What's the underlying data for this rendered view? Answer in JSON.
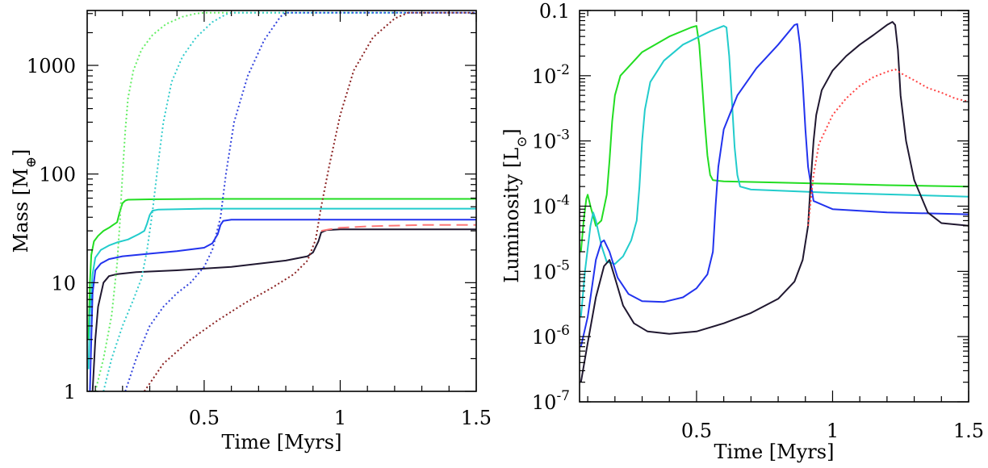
{
  "chart_data": [
    {
      "type": "line",
      "panel": "left",
      "xlabel": "Time [Myrs]",
      "ylabel_main": "Mass [M",
      "ylabel_symbol": "⊕",
      "ylabel_close": "]",
      "xlim": [
        0.07,
        1.5
      ],
      "ylim": [
        1,
        3200
      ],
      "yscale": "log",
      "xticks": [
        0.5,
        1,
        1.5
      ],
      "xtick_labels": [
        "0.5",
        "1",
        "1.5"
      ],
      "yticks": [
        1,
        10,
        100,
        1000
      ],
      "ytick_labels": [
        "1",
        "10",
        "100",
        "1000"
      ],
      "series": [
        {
          "color": "#22dd22",
          "style": "solid",
          "x": [
            0.075,
            0.08,
            0.085,
            0.095,
            0.11,
            0.13,
            0.15,
            0.165,
            0.18,
            0.19,
            0.2,
            0.21,
            0.22,
            0.3,
            0.5,
            1.0,
            1.5
          ],
          "y": [
            3,
            10,
            18,
            24,
            27,
            30,
            32,
            34,
            36,
            45,
            54,
            57,
            58,
            58.5,
            59,
            59,
            59
          ]
        },
        {
          "color": "#22cccc",
          "style": "solid",
          "x": [
            0.075,
            0.08,
            0.09,
            0.1,
            0.12,
            0.15,
            0.18,
            0.22,
            0.26,
            0.28,
            0.29,
            0.3,
            0.31,
            0.33,
            0.5,
            1.0,
            1.5
          ],
          "y": [
            1.6,
            5,
            12,
            17,
            20,
            22,
            23.5,
            25,
            28,
            30,
            35,
            42,
            46,
            47,
            48,
            48,
            48
          ]
        },
        {
          "color": "#2233ee",
          "style": "solid",
          "x": [
            0.08,
            0.085,
            0.09,
            0.1,
            0.12,
            0.15,
            0.2,
            0.3,
            0.4,
            0.5,
            0.53,
            0.55,
            0.56,
            0.57,
            0.6,
            1.0,
            1.5
          ],
          "y": [
            1,
            3,
            8,
            13,
            15,
            16.5,
            17.5,
            18.5,
            19.5,
            21,
            23,
            28,
            34,
            37,
            38,
            38,
            38
          ]
        },
        {
          "color": "#201830",
          "style": "solid",
          "x": [
            0.09,
            0.1,
            0.11,
            0.13,
            0.15,
            0.18,
            0.25,
            0.4,
            0.6,
            0.8,
            0.88,
            0.9,
            0.92,
            0.93,
            0.95,
            1.0,
            1.5
          ],
          "y": [
            1,
            3,
            6,
            10,
            11.5,
            12,
            12.5,
            13,
            14,
            16,
            17.5,
            19,
            24,
            29,
            30.5,
            31,
            31
          ]
        },
        {
          "color": "#ff7777",
          "style": "dashed",
          "x": [
            0.93,
            0.96,
            1.0,
            1.05,
            1.1,
            1.2,
            1.3,
            1.4,
            1.5
          ],
          "y": [
            30,
            31,
            32,
            32.5,
            33,
            33.5,
            34,
            34,
            34
          ]
        },
        {
          "color": "#66ee66",
          "style": "dotted",
          "x": [
            0.1,
            0.13,
            0.16,
            0.18,
            0.19,
            0.2,
            0.21,
            0.22,
            0.24,
            0.27,
            0.31,
            0.36,
            0.42,
            0.47,
            0.5,
            1.0,
            1.5
          ],
          "y": [
            1,
            2,
            5,
            15,
            35,
            100,
            250,
            500,
            900,
            1400,
            1900,
            2400,
            2800,
            3000,
            3050,
            3050,
            3050
          ]
        },
        {
          "color": "#33cccc",
          "style": "dotted",
          "x": [
            0.13,
            0.16,
            0.2,
            0.24,
            0.27,
            0.29,
            0.31,
            0.33,
            0.35,
            0.38,
            0.42,
            0.47,
            0.53,
            0.58,
            0.6,
            1.0,
            1.5
          ],
          "y": [
            1,
            2,
            4,
            7,
            11,
            20,
            45,
            120,
            300,
            700,
            1200,
            1800,
            2500,
            2950,
            3050,
            3050,
            3050
          ]
        },
        {
          "color": "#3344dd",
          "style": "dotted",
          "x": [
            0.21,
            0.25,
            0.3,
            0.35,
            0.4,
            0.45,
            0.5,
            0.53,
            0.56,
            0.58,
            0.61,
            0.66,
            0.72,
            0.78,
            0.8,
            1.0,
            1.5
          ],
          "y": [
            1,
            2,
            4,
            6,
            8,
            10,
            14,
            20,
            40,
            100,
            300,
            800,
            1700,
            2800,
            3050,
            3050,
            3050
          ]
        },
        {
          "color": "#8b2222",
          "style": "dotted",
          "x": [
            0.28,
            0.35,
            0.45,
            0.55,
            0.65,
            0.75,
            0.83,
            0.88,
            0.91,
            0.93,
            0.96,
            1.0,
            1.05,
            1.12,
            1.2,
            1.25,
            1.5
          ],
          "y": [
            1,
            1.8,
            3,
            4.5,
            6.5,
            9,
            12,
            16,
            25,
            50,
            120,
            350,
            900,
            1800,
            2700,
            3050,
            3050
          ]
        }
      ]
    },
    {
      "type": "line",
      "panel": "right",
      "xlabel": "Time [Myrs]",
      "ylabel_main": "Luminosity [L",
      "ylabel_symbol": "⊙",
      "ylabel_close": "]",
      "xlim": [
        0.07,
        1.5
      ],
      "ylim": [
        1e-07,
        0.1
      ],
      "yscale": "log",
      "xticks": [
        0.5,
        1,
        1.5
      ],
      "xtick_labels": [
        "0.5",
        "1",
        "1.5"
      ],
      "yticks": [
        1e-07,
        1e-06,
        1e-05,
        0.0001,
        0.001,
        0.01,
        0.1
      ],
      "ytick_labels": [
        {
          "base": "10",
          "exp": "-7"
        },
        {
          "base": "10",
          "exp": "-6"
        },
        {
          "base": "10",
          "exp": "-5"
        },
        {
          "base": "10",
          "exp": "-4"
        },
        {
          "base": "10",
          "exp": "-3"
        },
        {
          "base": "10",
          "exp": "-2"
        },
        {
          "base": "0.1",
          "exp": ""
        }
      ],
      "series": [
        {
          "color": "#22dd22",
          "style": "solid",
          "x": [
            0.075,
            0.085,
            0.095,
            0.1,
            0.11,
            0.13,
            0.15,
            0.17,
            0.18,
            0.19,
            0.2,
            0.22,
            0.3,
            0.4,
            0.48,
            0.5,
            0.51,
            0.52,
            0.53,
            0.54,
            0.55,
            0.56,
            0.6,
            0.8,
            1.0,
            1.2,
            1.5
          ],
          "y": [
            2e-05,
            6e-05,
            0.00013,
            0.00015,
            0.0001,
            5e-05,
            6e-05,
            0.00015,
            0.0005,
            0.002,
            0.005,
            0.01,
            0.023,
            0.04,
            0.055,
            0.058,
            0.03,
            0.008,
            0.002,
            0.0006,
            0.0003,
            0.00025,
            0.00024,
            0.00023,
            0.00022,
            0.00021,
            0.0002
          ]
        },
        {
          "color": "#22cccc",
          "style": "solid",
          "x": [
            0.075,
            0.09,
            0.11,
            0.12,
            0.13,
            0.15,
            0.17,
            0.2,
            0.23,
            0.26,
            0.28,
            0.29,
            0.3,
            0.31,
            0.33,
            0.38,
            0.45,
            0.55,
            0.6,
            0.61,
            0.62,
            0.63,
            0.64,
            0.65,
            0.66,
            0.7,
            1.0,
            1.5
          ],
          "y": [
            2e-06,
            1e-05,
            5e-05,
            8e-05,
            6e-05,
            2.5e-05,
            1.4e-05,
            1.3e-05,
            1.7e-05,
            3e-05,
            6e-05,
            0.0002,
            0.001,
            0.003,
            0.008,
            0.017,
            0.03,
            0.048,
            0.058,
            0.055,
            0.02,
            0.004,
            0.0008,
            0.0003,
            0.0002,
            0.00018,
            0.00016,
            0.00014
          ]
        },
        {
          "color": "#2233ee",
          "style": "solid",
          "x": [
            0.075,
            0.1,
            0.13,
            0.15,
            0.16,
            0.18,
            0.21,
            0.25,
            0.3,
            0.38,
            0.45,
            0.5,
            0.54,
            0.56,
            0.57,
            0.58,
            0.6,
            0.65,
            0.72,
            0.8,
            0.86,
            0.87,
            0.88,
            0.89,
            0.9,
            0.91,
            0.93,
            1.0,
            1.2,
            1.5
          ],
          "y": [
            7e-07,
            2e-06,
            1.5e-05,
            2.8e-05,
            3e-05,
            2e-05,
            8e-06,
            4.5e-06,
            3.5e-06,
            3.4e-06,
            4e-06,
            5.5e-06,
            9e-06,
            2e-05,
            0.0001,
            0.0004,
            0.0015,
            0.005,
            0.013,
            0.03,
            0.06,
            0.062,
            0.03,
            0.008,
            0.0015,
            0.0004,
            0.00012,
            9e-05,
            8e-05,
            7.5e-05
          ]
        },
        {
          "color": "#201830",
          "style": "solid",
          "x": [
            0.075,
            0.1,
            0.13,
            0.16,
            0.18,
            0.2,
            0.23,
            0.27,
            0.32,
            0.4,
            0.5,
            0.6,
            0.7,
            0.8,
            0.86,
            0.89,
            0.91,
            0.92,
            0.93,
            0.94,
            0.96,
            1.0,
            1.05,
            1.1,
            1.15,
            1.2,
            1.22,
            1.23,
            1.24,
            1.25,
            1.27,
            1.3,
            1.35,
            1.4,
            1.5
          ],
          "y": [
            2e-07,
            8e-07,
            4e-06,
            1.2e-05,
            1.5e-05,
            8e-06,
            3e-06,
            1.6e-06,
            1.2e-06,
            1.1e-06,
            1.2e-06,
            1.6e-06,
            2.3e-06,
            3.8e-06,
            7e-06,
            1.5e-05,
            5e-05,
            0.00025,
            0.001,
            0.0025,
            0.006,
            0.012,
            0.02,
            0.03,
            0.042,
            0.06,
            0.067,
            0.06,
            0.025,
            0.005,
            0.001,
            0.00025,
            8e-05,
            5.5e-05,
            5e-05
          ]
        },
        {
          "color": "#ff4444",
          "style": "dotted",
          "x": [
            0.91,
            0.93,
            0.95,
            1.0,
            1.05,
            1.1,
            1.15,
            1.2,
            1.23,
            1.25,
            1.3,
            1.35,
            1.4,
            1.45,
            1.5
          ],
          "y": [
            5e-05,
            0.0003,
            0.0009,
            0.0025,
            0.0045,
            0.007,
            0.0095,
            0.0115,
            0.0125,
            0.011,
            0.0085,
            0.0065,
            0.0055,
            0.0045,
            0.004
          ]
        }
      ]
    }
  ]
}
